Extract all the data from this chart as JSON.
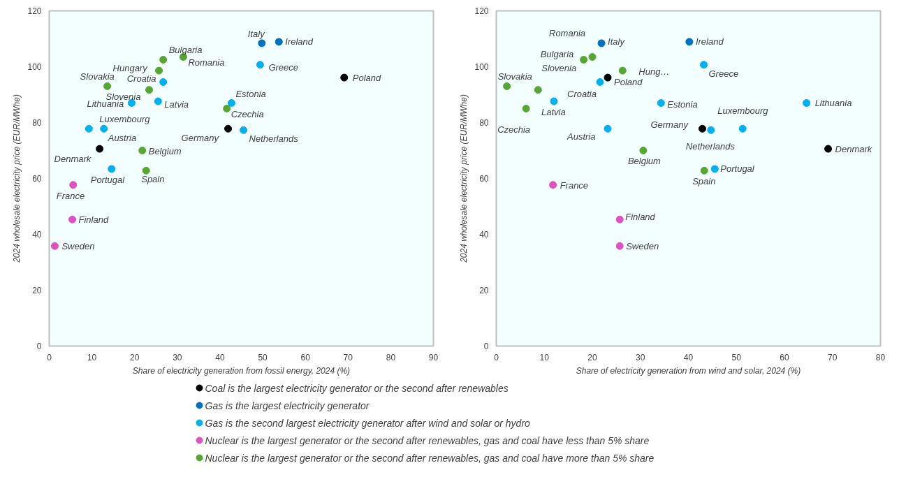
{
  "chart_data": [
    {
      "type": "scatter",
      "xlabel": "Share of electricity generation from fossil energy, 2024 (%)",
      "ylabel": "2024 wholesale electricity price (EUR/MWhe)",
      "xlim": [
        0,
        90
      ],
      "xticks": [
        0,
        10,
        20,
        30,
        40,
        50,
        60,
        70,
        80,
        90
      ],
      "ylim": [
        0,
        120
      ],
      "yticks": [
        0,
        20,
        40,
        60,
        80,
        100,
        120
      ],
      "grid": false,
      "marker": "circle",
      "legend": "bottom",
      "series": [
        {
          "name": "Coal is the largest electricity generator or the second after renewables",
          "color": "#000000",
          "x": [
            69.1,
            41.9,
            11.8
          ],
          "values": [
            96.1,
            77.8,
            70.6
          ]
        },
        {
          "name": "Gas is the largest electricity generator",
          "color": "#0070c0",
          "x": [
            49.8,
            53.8
          ],
          "values": [
            108.4,
            108.9
          ]
        },
        {
          "name": "Gas is the second largest electricity generator after wind and solar or hydro",
          "color": "#00b0f0",
          "x": [
            49.4,
            26.7,
            19.3,
            25.5,
            42.7,
            45.5,
            9.3,
            12.8,
            14.6
          ],
          "values": [
            100.7,
            94.5,
            87.0,
            87.6,
            87.0,
            77.3,
            77.8,
            77.8,
            63.4
          ]
        },
        {
          "name": "Nuclear is the largest generator or the second after renewables, gas and coal have less than 5% share",
          "color": "#e050c0",
          "x": [
            5.6,
            5.4,
            1.3
          ],
          "values": [
            57.7,
            45.3,
            35.8
          ]
        },
        {
          "name": "Nuclear is the largest generator or the second after renewables, gas and coal have more than 5% share",
          "color": "#56a632",
          "x": [
            25.7,
            26.7,
            31.4,
            13.6,
            23.4,
            41.6,
            21.8,
            22.7
          ],
          "values": [
            98.6,
            102.5,
            103.5,
            93.0,
            91.7,
            85.0,
            70.0,
            62.8
          ]
        }
      ],
      "annotations": [
        {
          "text": "Poland",
          "x": 69.1,
          "y": 96.1
        },
        {
          "text": "Germany",
          "x": 41.9,
          "y": 77.8
        },
        {
          "text": "Denmark",
          "x": 11.8,
          "y": 70.6
        },
        {
          "text": "Italy",
          "x": 49.8,
          "y": 108.4
        },
        {
          "text": "Ireland",
          "x": 53.8,
          "y": 108.9
        },
        {
          "text": "Greece",
          "x": 49.4,
          "y": 100.7
        },
        {
          "text": "Croatia",
          "x": 26.7,
          "y": 94.5
        },
        {
          "text": "Lithuania",
          "x": 19.3,
          "y": 87.0
        },
        {
          "text": "Latvia",
          "x": 25.5,
          "y": 87.6
        },
        {
          "text": "Estonia",
          "x": 42.7,
          "y": 87.0
        },
        {
          "text": "Netherlands",
          "x": 45.5,
          "y": 77.3
        },
        {
          "text": "Luxembourg",
          "x": 9.3,
          "y": 77.8
        },
        {
          "text": "Austria",
          "x": 12.8,
          "y": 77.8
        },
        {
          "text": "Portugal",
          "x": 14.6,
          "y": 63.4
        },
        {
          "text": "France",
          "x": 5.6,
          "y": 57.7
        },
        {
          "text": "Finland",
          "x": 5.4,
          "y": 45.3
        },
        {
          "text": "Sweden",
          "x": 1.3,
          "y": 35.8
        },
        {
          "text": "Hungary",
          "x": 25.7,
          "y": 98.6
        },
        {
          "text": "Bulgaria",
          "x": 26.7,
          "y": 102.5
        },
        {
          "text": "Romania",
          "x": 31.4,
          "y": 103.5
        },
        {
          "text": "Slovakia",
          "x": 13.6,
          "y": 93.0
        },
        {
          "text": "Slovenia",
          "x": 23.4,
          "y": 91.7
        },
        {
          "text": "Czechia",
          "x": 41.6,
          "y": 85.0
        },
        {
          "text": "Belgium",
          "x": 21.8,
          "y": 70.0
        },
        {
          "text": "Spain",
          "x": 22.7,
          "y": 62.8
        }
      ]
    },
    {
      "type": "scatter",
      "xlabel": "Share of electricity generation from wind and solar, 2024 (%)",
      "ylabel": "2024 wholesale electricity price (EUR/MWhe)",
      "xlim": [
        0,
        80
      ],
      "xticks": [
        0,
        10,
        20,
        30,
        40,
        50,
        60,
        70,
        80
      ],
      "ylim": [
        0,
        120
      ],
      "yticks": [
        0,
        20,
        40,
        60,
        80,
        100,
        120
      ],
      "grid": false,
      "marker": "circle",
      "series": [
        {
          "color": "#000000",
          "x": [
            23.2,
            42.9,
            69.1
          ],
          "values": [
            96.1,
            77.8,
            70.6
          ]
        },
        {
          "color": "#0070c0",
          "x": [
            21.9,
            40.2
          ],
          "values": [
            108.4,
            108.9
          ]
        },
        {
          "color": "#00b0f0",
          "x": [
            43.2,
            21.6,
            64.6,
            12.0,
            34.3,
            44.7,
            51.3,
            23.2,
            45.5
          ],
          "values": [
            100.7,
            94.5,
            87.0,
            87.6,
            87.0,
            77.3,
            77.8,
            77.8,
            63.4
          ]
        },
        {
          "color": "#e050c0",
          "x": [
            11.8,
            25.7,
            25.7
          ],
          "values": [
            57.7,
            45.3,
            35.8
          ]
        },
        {
          "color": "#56a632",
          "x": [
            26.3,
            18.2,
            20.0,
            2.2,
            8.7,
            6.2,
            30.6,
            43.3
          ],
          "values": [
            98.6,
            102.5,
            103.5,
            93.0,
            91.7,
            85.0,
            70.0,
            62.8
          ]
        }
      ],
      "annotations": [
        {
          "text": "Poland",
          "x": 23.2,
          "y": 96.1
        },
        {
          "text": "Germany",
          "x": 42.9,
          "y": 77.8
        },
        {
          "text": "Denmark",
          "x": 69.1,
          "y": 70.6
        },
        {
          "text": "Italy",
          "x": 21.9,
          "y": 108.4
        },
        {
          "text": "Ireland",
          "x": 40.2,
          "y": 108.9
        },
        {
          "text": "Greece",
          "x": 43.2,
          "y": 100.7
        },
        {
          "text": "Croatia",
          "x": 21.6,
          "y": 94.5
        },
        {
          "text": "Lithuania",
          "x": 64.6,
          "y": 87.0
        },
        {
          "text": "Latvia",
          "x": 12.0,
          "y": 87.6
        },
        {
          "text": "Estonia",
          "x": 34.3,
          "y": 87.0
        },
        {
          "text": "Netherlands",
          "x": 44.7,
          "y": 77.3
        },
        {
          "text": "Luxembourg",
          "x": 51.3,
          "y": 77.8
        },
        {
          "text": "Austria",
          "x": 23.2,
          "y": 77.8
        },
        {
          "text": "Portugal",
          "x": 45.5,
          "y": 63.4
        },
        {
          "text": "France",
          "x": 11.8,
          "y": 57.7
        },
        {
          "text": "Finland",
          "x": 25.7,
          "y": 45.3
        },
        {
          "text": "Sweden",
          "x": 25.7,
          "y": 35.8
        },
        {
          "text": "Hung…",
          "x": 26.3,
          "y": 98.6
        },
        {
          "text": "Bulgaria",
          "x": 18.2,
          "y": 102.5
        },
        {
          "text": "Romania",
          "x": 20.0,
          "y": 103.5
        },
        {
          "text": "Slovakia",
          "x": 2.2,
          "y": 93.0
        },
        {
          "text": "Slovenia",
          "x": 8.7,
          "y": 91.7
        },
        {
          "text": "Czechia",
          "x": 6.2,
          "y": 85.0
        },
        {
          "text": "Belgium",
          "x": 30.6,
          "y": 70.0
        },
        {
          "text": "Spain",
          "x": 43.3,
          "y": 62.8
        }
      ]
    }
  ]
}
